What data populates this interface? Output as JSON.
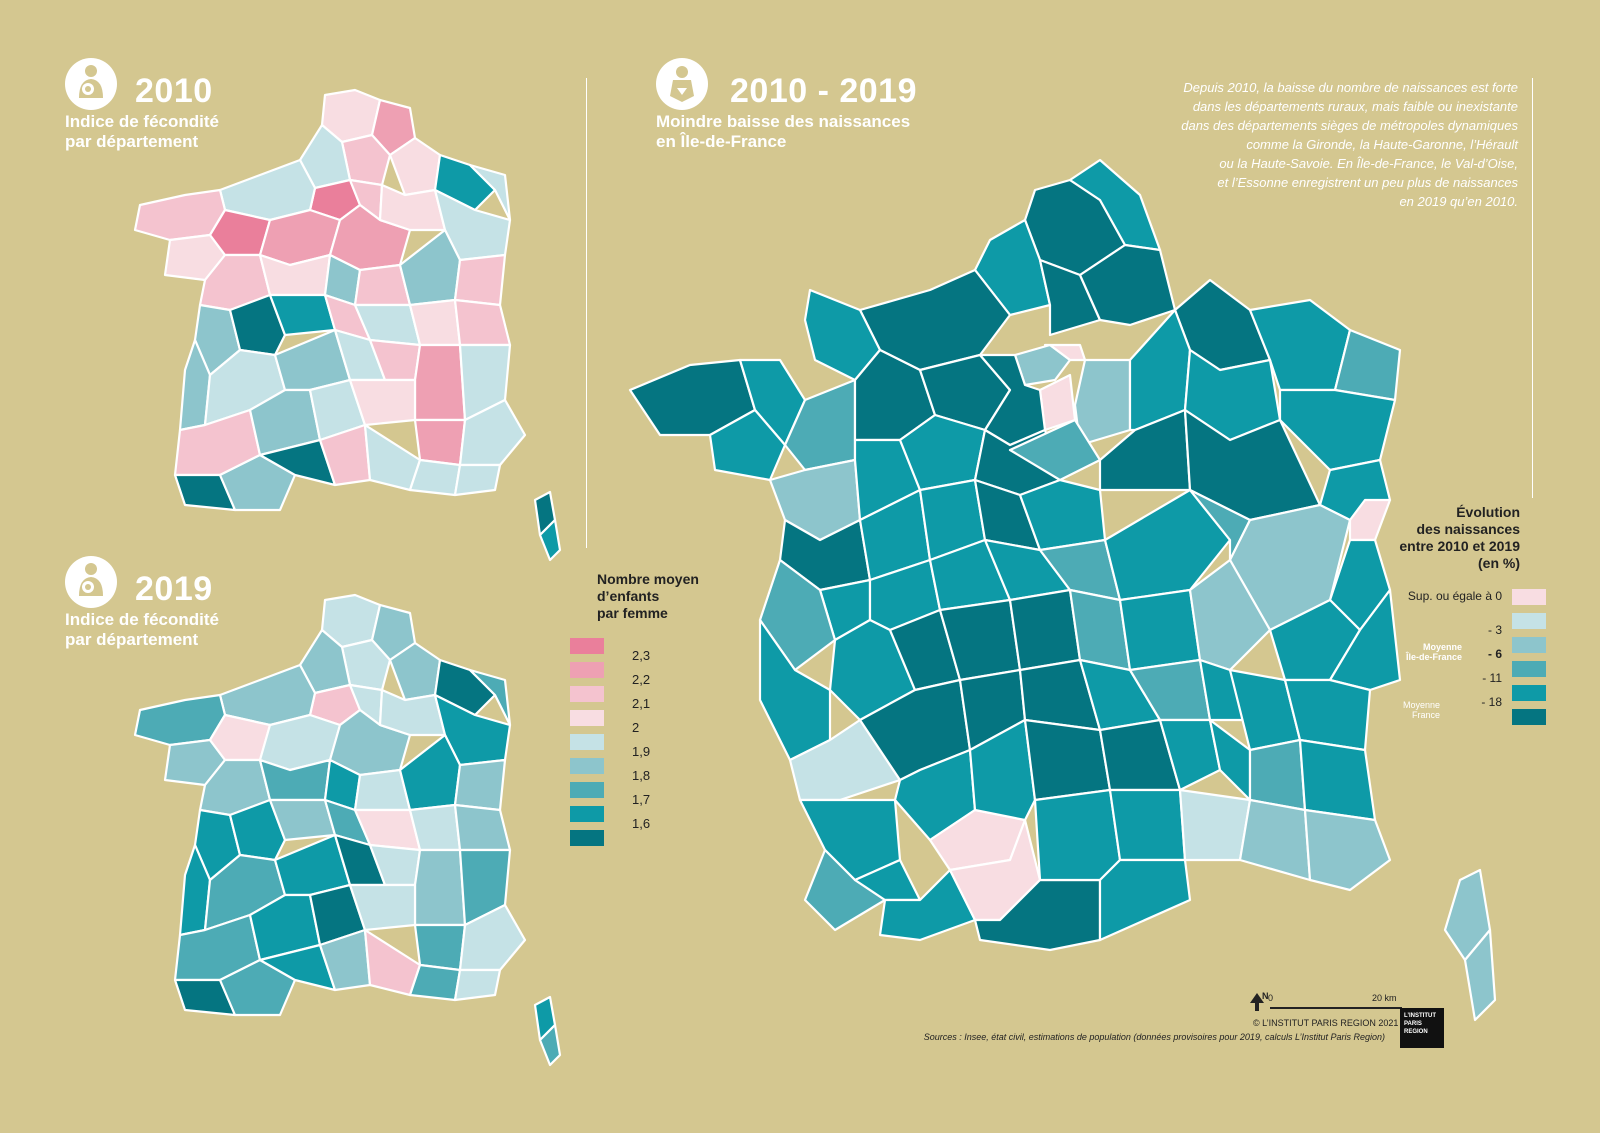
{
  "maps": {
    "map2010": {
      "year": "2010",
      "subtitle": "Indice de fécondité\npar département",
      "icon": "mother-child-icon"
    },
    "map2019": {
      "year": "2019",
      "subtitle": "Indice de fécondité\npar département",
      "icon": "mother-child-icon"
    },
    "evolution": {
      "year": "2010 - 2019",
      "subtitle": "Moindre baisse des naissances\nen Île-de-France",
      "icon": "baby-icon",
      "description": "Depuis 2010, la baisse du nombre de naissances est forte\ndans les départements ruraux, mais faible ou inexistante\ndans des départements sièges de métropoles dynamiques\ncomme la Gironde, la Haute-Garonne, l’Hérault\nou la Haute-Savoie. En Île-de-France, le Val-d’Oise,\net l’Essonne enregistrent un peu plus de naissances\nen 2019 qu’en 2010."
    }
  },
  "legend_fertility": {
    "title": "Nombre moyen\nd’enfants\npar femme",
    "labels": [
      "2,3",
      "2,2",
      "2,1",
      "2",
      "1,9",
      "1,8",
      "1,7",
      "1,6"
    ],
    "colors": [
      "#ea7f9b",
      "#eea0b3",
      "#f4c3cf",
      "#f8dde2",
      "#c5e2e6",
      "#8dc5cc",
      "#4dabb5",
      "#0e9aa7",
      "#057581"
    ]
  },
  "legend_evolution": {
    "title": "Évolution\ndes naissances\nentre 2010 et 2019\n(en %)",
    "labels": [
      "Sup. ou égale à 0",
      "- 3",
      "- 6",
      "- 11",
      "- 18"
    ],
    "colors": [
      "#f8dde2",
      "#c5e2e6",
      "#8dc5cc",
      "#4dabb5",
      "#0e9aa7",
      "#057581"
    ],
    "moyenne_idf": "Moyenne\nÎle-de-France",
    "moyenne_france": "Moyenne\nFrance"
  },
  "scale": {
    "north": "N",
    "zero": "0",
    "distance": "20 km"
  },
  "credits": {
    "copyright": "© L’INSTITUT PARIS REGION 2021",
    "sources": "Sources : Insee, état civil, estimations de population (données provisoires pour 2019, calculs L’Institut Paris Region)",
    "logo_text": "L’INSTITUT PARIS REGION"
  }
}
